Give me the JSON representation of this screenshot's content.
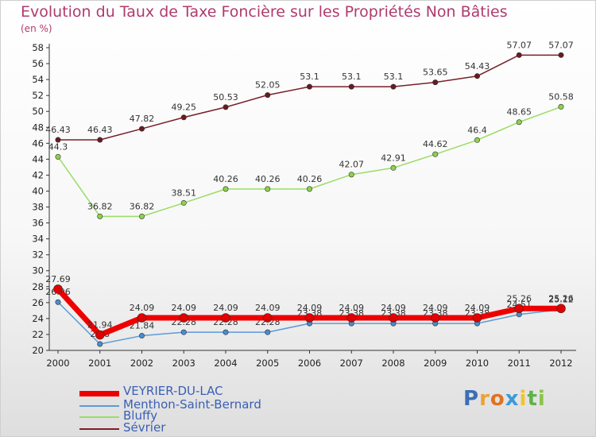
{
  "title": "Evolution du Taux de Taxe Foncière sur les Propriétés Non Bâties",
  "unit": "(en %)",
  "chart_data": {
    "type": "line",
    "title": "Evolution du Taux de Taxe Foncière sur les Propriétés Non Bâties",
    "ylabel": "(en %)",
    "xlabel": "",
    "ylim": [
      20,
      58
    ],
    "yticks": [
      20,
      22,
      24,
      26,
      28,
      30,
      32,
      34,
      36,
      38,
      40,
      42,
      44,
      46,
      48,
      50,
      52,
      54,
      56,
      58
    ],
    "x": [
      "2000",
      "2001",
      "2002",
      "2003",
      "2004",
      "2005",
      "2006",
      "2007",
      "2008",
      "2009",
      "2010",
      "2011",
      "2012"
    ],
    "series": [
      {
        "name": "Sévrier",
        "color": "#7a1f2a",
        "values": [
          46.43,
          46.43,
          47.82,
          49.25,
          50.53,
          52.05,
          53.1,
          53.1,
          53.1,
          53.65,
          54.43,
          57.07,
          57.07
        ]
      },
      {
        "name": "Bluffy",
        "color": "#99dd66",
        "values": [
          44.3,
          36.82,
          36.82,
          38.51,
          40.26,
          40.26,
          40.26,
          42.07,
          42.91,
          44.62,
          46.4,
          48.65,
          50.58
        ]
      },
      {
        "name": "Menthon-Saint-Bernard",
        "color": "#5b9bd5",
        "values": [
          26.06,
          20.8,
          21.84,
          22.28,
          22.28,
          22.28,
          23.38,
          23.38,
          23.38,
          23.38,
          23.38,
          24.51,
          25.12
        ]
      },
      {
        "name": "VEYRIER-DU-LAC",
        "color": "#ee0000",
        "values": [
          27.69,
          21.94,
          24.09,
          24.09,
          24.09,
          24.09,
          24.09,
          24.09,
          24.09,
          24.09,
          24.09,
          25.26,
          25.26
        ]
      }
    ],
    "labels": {
      "Sévrier": [
        "46.43",
        "46.43",
        "47.82",
        "49.25",
        "50.53",
        "52.05",
        "53.1",
        "53.1",
        "53.1",
        "53.65",
        "54.43",
        "57.07",
        "57.07"
      ],
      "Bluffy": [
        "44.3",
        "36.82",
        "36.82",
        "38.51",
        "40.26",
        "40.26",
        "40.26",
        "42.07",
        "42.91",
        "44.62",
        "46.4",
        "48.65",
        "50.58"
      ],
      "Menthon-Saint-Bernard": [
        "26.06",
        "20.8",
        "21.84",
        "22.28",
        "22.28",
        "22.28",
        "23.38",
        "23.38",
        "23.38",
        "23.38",
        "23.38",
        "24.51",
        "25.12"
      ],
      "VEYRIER-DU-LAC": [
        "27.69",
        "21.94",
        "24.09",
        "24.09",
        "24.09",
        "24.09",
        "24.09",
        "24.09",
        "24.09",
        "24.09",
        "24.09",
        "25.26",
        "25.26"
      ]
    },
    "legend": [
      "VEYRIER-DU-LAC",
      "Menthon-Saint-Bernard",
      "Bluffy",
      "Sévrier"
    ],
    "legend_position": "bottom-left",
    "grid": false
  },
  "logo": {
    "letters": [
      "P",
      "r",
      "o",
      "x",
      "i",
      "t",
      "i"
    ],
    "colors": [
      "#3b6fb6",
      "#e9a23b",
      "#e2711d",
      "#3a9ad9",
      "#f2c230",
      "#5fb34a",
      "#8bc34a"
    ]
  }
}
